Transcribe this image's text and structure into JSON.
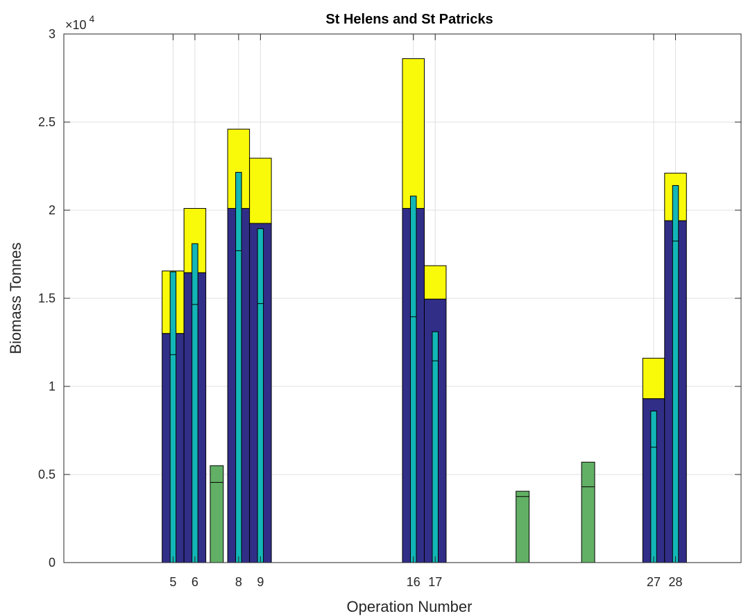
{
  "chart_data": {
    "type": "bar",
    "title": "St Helens and St Patricks",
    "xlabel": "Operation Number",
    "ylabel": "Biomass Tonnes",
    "y_exponent_label": {
      "times": "×10",
      "power": "4"
    },
    "xlim": [
      0,
      31
    ],
    "ylim": [
      0,
      30000
    ],
    "x_ticks": [
      5,
      6,
      8,
      9,
      16,
      17,
      27,
      28
    ],
    "y_ticks": [
      0,
      5000,
      10000,
      15000,
      20000,
      25000,
      30000
    ],
    "y_tick_labels": [
      "0",
      "0.5",
      "1",
      "1.5",
      "2",
      "2.5",
      "3"
    ],
    "grid": true,
    "colors": {
      "base": "#312e88",
      "top": "#f9f90a",
      "inner": "#13b6b6",
      "small": "#62b065",
      "edge": "#000000",
      "grid": "#e0e0e0"
    },
    "wide_bars": [
      {
        "x": 5,
        "base": 13000,
        "total": 16550
      },
      {
        "x": 6,
        "base": 16450,
        "total": 20100
      },
      {
        "x": 8,
        "base": 20100,
        "total": 24600
      },
      {
        "x": 9,
        "base": 19250,
        "total": 22950
      },
      {
        "x": 16,
        "base": 20100,
        "total": 28600
      },
      {
        "x": 17,
        "base": 14950,
        "total": 16850
      },
      {
        "x": 27,
        "base": 9300,
        "total": 11600
      },
      {
        "x": 28,
        "base": 19400,
        "total": 22100
      }
    ],
    "inner_bars": [
      {
        "x": 5,
        "value": 16500,
        "mark": 11800
      },
      {
        "x": 6,
        "value": 18100,
        "mark": 14650
      },
      {
        "x": 8,
        "value": 22150,
        "mark": 17700
      },
      {
        "x": 9,
        "value": 18950,
        "mark": 14700
      },
      {
        "x": 16,
        "value": 20800,
        "mark": 13950
      },
      {
        "x": 17,
        "value": 13100,
        "mark": 11450
      },
      {
        "x": 27,
        "value": 8600,
        "mark": 6550
      },
      {
        "x": 28,
        "value": 21400,
        "mark": 18250
      }
    ],
    "small_bars": [
      {
        "x": 7,
        "value": 5500,
        "mark": 4550
      },
      {
        "x": 21,
        "value": 4050,
        "mark": 3750
      },
      {
        "x": 24,
        "value": 5700,
        "mark": 4300
      }
    ]
  }
}
